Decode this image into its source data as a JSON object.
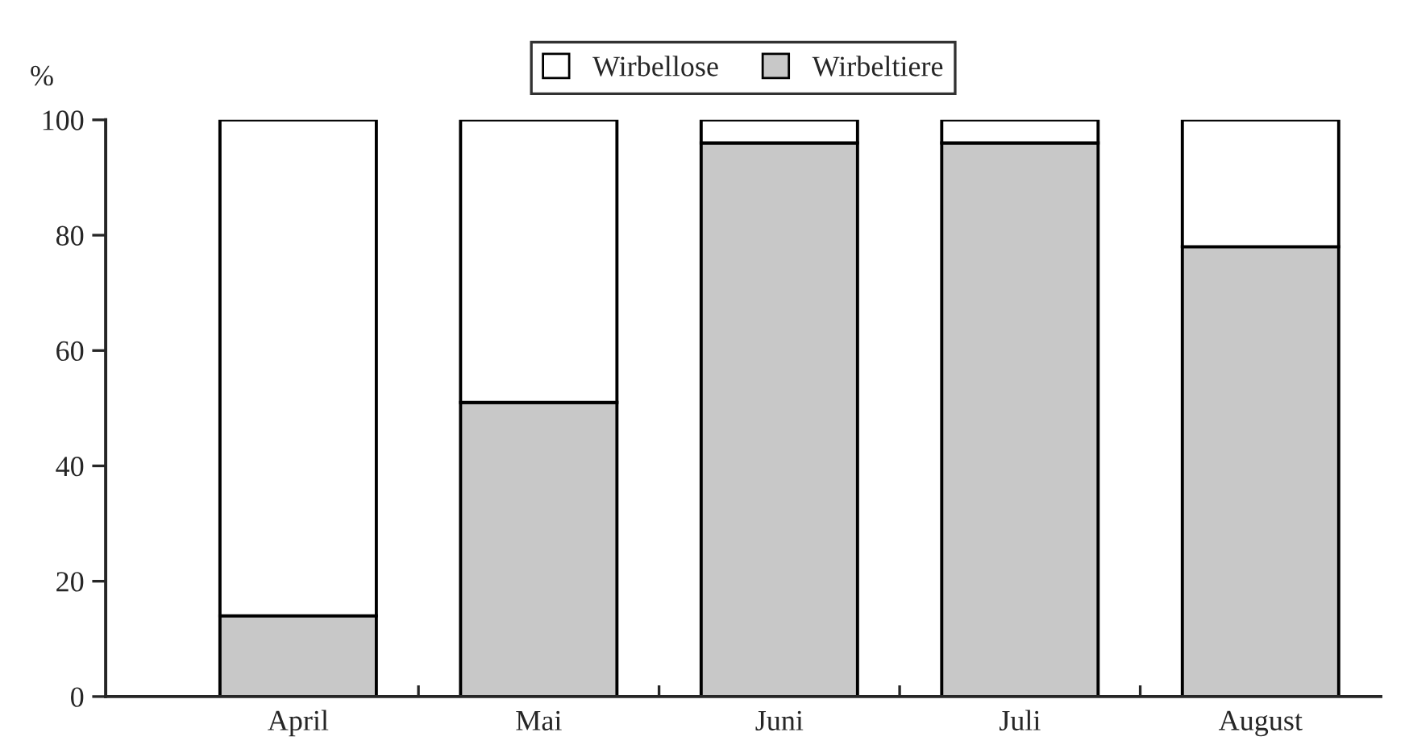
{
  "chart_data": {
    "type": "bar",
    "stacked": true,
    "ylabel": "%",
    "categories": [
      "April",
      "Mai",
      "Juni",
      "Juli",
      "August"
    ],
    "series": [
      {
        "name": "Wirbeltiere",
        "color": "#c8c8c8",
        "values": [
          14,
          51,
          96,
          96,
          78
        ]
      },
      {
        "name": "Wirbellose",
        "color": "#ffffff",
        "values": [
          86,
          49,
          4,
          4,
          22
        ]
      }
    ],
    "ylim": [
      0,
      100
    ],
    "yticks": [
      0,
      20,
      40,
      60,
      80,
      100
    ],
    "legend": "top",
    "grid": false
  }
}
